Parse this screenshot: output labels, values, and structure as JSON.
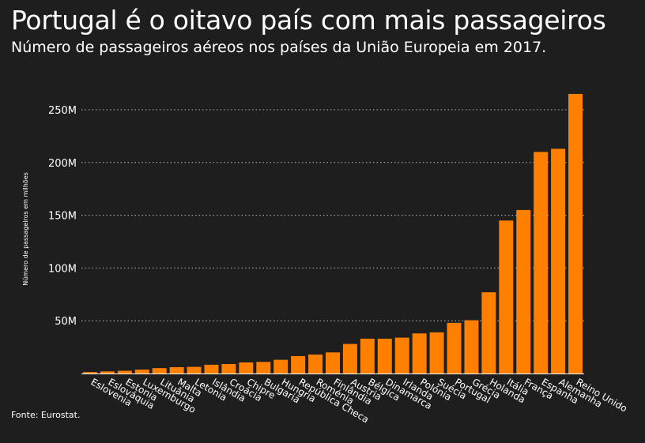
{
  "header": {
    "title": "Portugal é o oitavo país com mais passageiros",
    "subtitle": "Número de passageiros aéreos nos países da União Europeia em 2017."
  },
  "footer": {
    "source": "Fonte: Eurostat."
  },
  "colors": {
    "background": "#1e1e1e",
    "bar": "#ff8000",
    "text": "#ffffff",
    "grid": "#bbbbbb"
  },
  "chart_data": {
    "type": "bar",
    "title": "Portugal é o oitavo país com mais passageiros",
    "subtitle": "Número de passageiros aéreos nos países da União Europeia em 2017.",
    "xlabel": "",
    "ylabel": "Número de passageiros em milhões",
    "ylim": [
      0,
      270
    ],
    "yticks": [
      50,
      100,
      150,
      200,
      250
    ],
    "ytick_labels": [
      "50M",
      "100M",
      "150M",
      "200M",
      "250M"
    ],
    "grid": "horizontal-dotted",
    "legend": "none",
    "categories": [
      "Eslovenia",
      "Eslováquia",
      "Estonia",
      "Luxemburgo",
      "Lituânia",
      "Malta",
      "Letonia",
      "Islândia",
      "Croácia",
      "Chipre",
      "Bulgaria",
      "Hungria",
      "República Checa",
      "Roménia",
      "Finlândia",
      "Austria",
      "Bélgica",
      "Dinamarca",
      "Irlanda",
      "Polónia",
      "Suécia",
      "Portugal",
      "Grécia",
      "Holanda",
      "Itália",
      "França",
      "Espanha",
      "Alemanha",
      "Reino Unido"
    ],
    "values": [
      1.4,
      2.0,
      2.6,
      3.7,
      5.1,
      6.0,
      6.3,
      8.3,
      9.0,
      10.5,
      11.0,
      13.0,
      16.5,
      18.0,
      20.0,
      28.0,
      33.0,
      33.0,
      34.0,
      38.0,
      39.0,
      48.0,
      50.5,
      77.0,
      145.0,
      155.0,
      210.0,
      213.0,
      265.0
    ]
  }
}
